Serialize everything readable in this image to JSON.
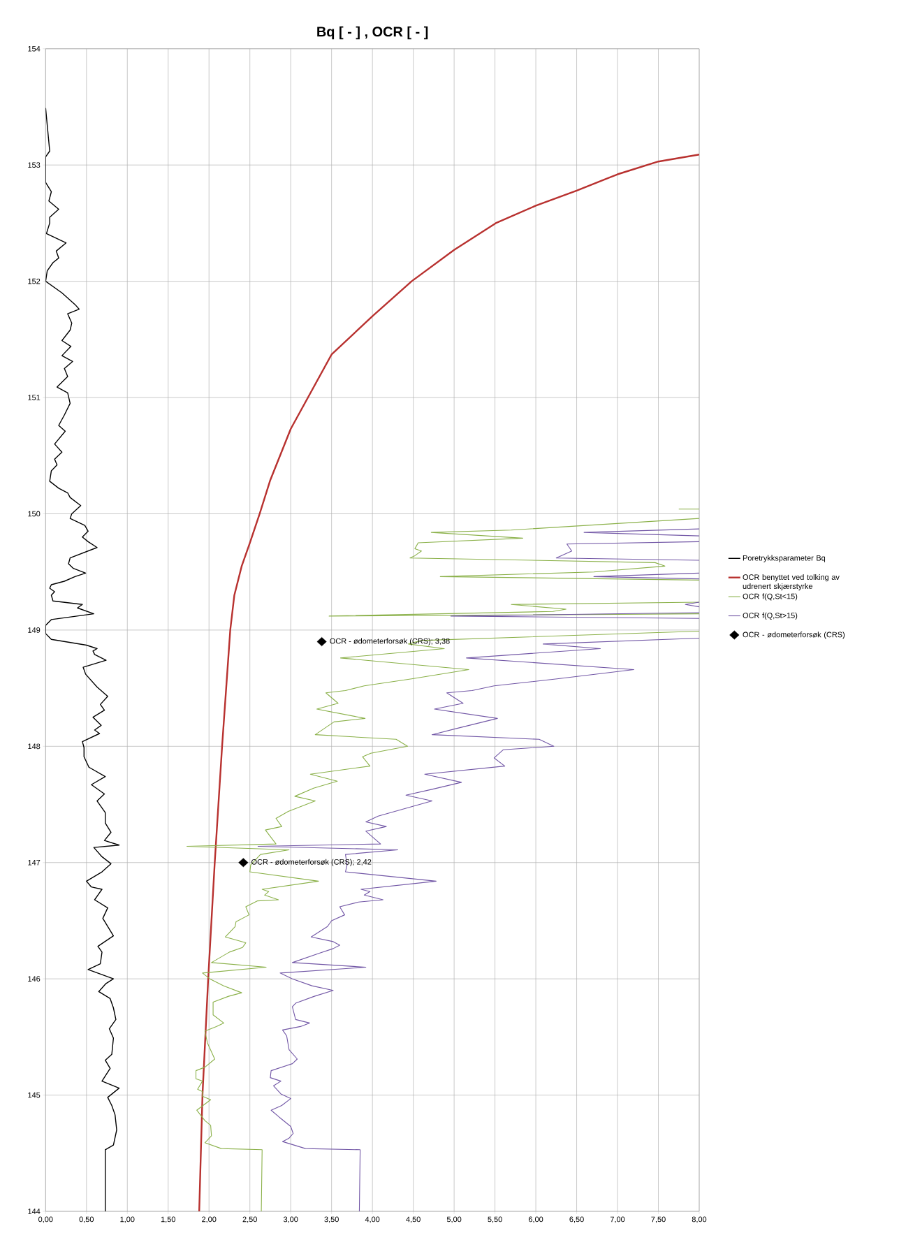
{
  "chart_data": {
    "type": "line",
    "title": "Bq [ - ] , OCR [ - ]",
    "xlim": [
      0,
      8
    ],
    "ylim": [
      144,
      154
    ],
    "xticks": [
      {
        "value": 0,
        "label": "0,00"
      },
      {
        "value": 0.5,
        "label": "0,50"
      },
      {
        "value": 1,
        "label": "1,00"
      },
      {
        "value": 1.5,
        "label": "1,50"
      },
      {
        "value": 2,
        "label": "2,00"
      },
      {
        "value": 2.5,
        "label": "2,50"
      },
      {
        "value": 3,
        "label": "3,00"
      },
      {
        "value": 3.5,
        "label": "3,50"
      },
      {
        "value": 4,
        "label": "4,00"
      },
      {
        "value": 4.5,
        "label": "4,50"
      },
      {
        "value": 5,
        "label": "5,00"
      },
      {
        "value": 5.5,
        "label": "5,50"
      },
      {
        "value": 6,
        "label": "6,00"
      },
      {
        "value": 6.5,
        "label": "6,50"
      },
      {
        "value": 7,
        "label": "7,00"
      },
      {
        "value": 7.5,
        "label": "7,50"
      },
      {
        "value": 8,
        "label": "8,00"
      }
    ],
    "yticks": [
      144,
      145,
      146,
      147,
      148,
      149,
      150,
      151,
      152,
      153,
      154
    ],
    "grid": true,
    "legend": "right",
    "series": [
      {
        "name": "Poretrykksparameter Bq",
        "color": "#000000",
        "x": [
          0,
          0.05,
          0,
          0,
          0.07,
          0.04,
          0.16,
          0.05,
          0.05,
          0.01,
          0.25,
          0.13,
          0.16,
          0.09,
          0.02,
          0,
          0.2,
          0.36,
          0.41,
          0.27,
          0.32,
          0.3,
          0.2,
          0.31,
          0.2,
          0.33,
          0.23,
          0.27,
          0.14,
          0.27,
          0.3,
          0.23,
          0.16,
          0.24,
          0.11,
          0.2,
          0.11,
          0.14,
          0.07,
          0.05,
          0.16,
          0.27,
          0.3,
          0.43,
          0.32,
          0.3,
          0.48,
          0.52,
          0.45,
          0.52,
          0.63,
          0.3,
          0.28,
          0.34,
          0.49,
          0.36,
          0.23,
          0.07,
          0.05,
          0.11,
          0.07,
          0.09,
          0.45,
          0.39,
          0.59,
          0.07,
          0,
          0,
          0.07,
          0.5,
          0.63,
          0.58,
          0.6,
          0.74,
          0.46,
          0.49,
          0.63,
          0.76,
          0.67,
          0.72,
          0.58,
          0.68,
          0.6,
          0.66,
          0.45,
          0.47,
          0.47,
          0.53,
          0.73,
          0.56,
          0.72,
          0.63,
          0.73,
          0.73,
          0.8,
          0.72,
          0.9,
          0.59,
          0.69,
          0.8,
          0.69,
          0.5,
          0.56,
          0.69,
          0.65,
          0.6,
          0.76,
          0.7,
          0.83,
          0.64,
          0.69,
          0.67,
          0.52,
          0.83,
          0.74,
          0.65,
          0.79,
          0.83,
          0.86,
          0.78,
          0.83,
          0.81,
          0.73,
          0.79,
          0.69,
          0.9,
          0.76,
          0.81,
          0.85,
          0.87,
          0.83,
          0.73,
          0.73
        ],
        "values": [
          153.49,
          153.12,
          153.07,
          152.85,
          152.77,
          152.69,
          152.62,
          152.55,
          152.5,
          152.41,
          152.33,
          152.26,
          152.2,
          152.16,
          152.09,
          152.0,
          151.9,
          151.8,
          151.76,
          151.72,
          151.64,
          151.58,
          151.49,
          151.44,
          151.36,
          151.31,
          151.25,
          151.18,
          151.09,
          151.04,
          150.95,
          150.85,
          150.76,
          150.71,
          150.6,
          150.53,
          150.47,
          150.42,
          150.37,
          150.28,
          150.22,
          150.18,
          150.14,
          150.07,
          150.0,
          149.96,
          149.9,
          149.85,
          149.8,
          149.76,
          149.71,
          149.62,
          149.57,
          149.53,
          149.49,
          149.46,
          149.42,
          149.39,
          149.36,
          149.33,
          149.3,
          149.25,
          149.22,
          149.19,
          149.14,
          149.09,
          149.04,
          148.97,
          148.92,
          148.87,
          148.84,
          148.82,
          148.79,
          148.74,
          148.68,
          148.62,
          148.51,
          148.43,
          148.36,
          148.31,
          148.25,
          148.18,
          148.14,
          148.11,
          148.04,
          147.99,
          147.91,
          147.82,
          147.74,
          147.67,
          147.59,
          147.53,
          147.43,
          147.34,
          147.26,
          147.19,
          147.15,
          147.13,
          147.05,
          146.99,
          146.92,
          146.84,
          146.79,
          146.77,
          146.73,
          146.68,
          146.61,
          146.52,
          146.37,
          146.28,
          146.23,
          146.13,
          146.08,
          146.0,
          145.96,
          145.89,
          145.83,
          145.75,
          145.65,
          145.57,
          145.49,
          145.35,
          145.3,
          145.23,
          145.12,
          145.06,
          144.98,
          144.91,
          144.83,
          144.7,
          144.57,
          144.53,
          144.0
        ]
      },
      {
        "name": "OCR benyttet ved tolking av udrenert skjærstyrke",
        "color": "#b8312f",
        "x": [
          1.88,
          1.92,
          1.99,
          2.07,
          2.16,
          2.26,
          2.31,
          2.4,
          2.5,
          2.62,
          2.75,
          3.0,
          3.5,
          4.0,
          4.48,
          5.0,
          5.51,
          6.0,
          6.5,
          7.0,
          7.5,
          8.0
        ],
        "values": [
          144.0,
          145.0,
          146.0,
          147.0,
          148.0,
          149.0,
          149.3,
          149.55,
          149.75,
          150.0,
          150.29,
          150.73,
          151.37,
          151.7,
          152.0,
          152.27,
          152.5,
          152.65,
          152.78,
          152.92,
          153.03,
          153.09
        ]
      },
      {
        "name": "OCR f(Q,St<15)",
        "color": "#8bb14a",
        "x": [
          7.75,
          8.0,
          null,
          8.0,
          5.7,
          4.72,
          5.84,
          4.56,
          4.52,
          4.6,
          4.52,
          4.46,
          7.46,
          7.58,
          6.71,
          4.83,
          8.0,
          null,
          8.0,
          5.7,
          6.37,
          6.21,
          3.47,
          8.0,
          null,
          8.0,
          4.6,
          4.44,
          4.88,
          3.61,
          5.18,
          4.48,
          3.9,
          3.67,
          3.43,
          3.58,
          3.32,
          3.91,
          3.53,
          3.3,
          4.29,
          4.43,
          3.98,
          3.88,
          3.97,
          3.24,
          3.57,
          3.28,
          3.05,
          3.3,
          2.97,
          2.82,
          2.89,
          2.69,
          2.82,
          1.73,
          2.98,
          2.63,
          2.51,
          2.5,
          3.34,
          2.65,
          2.73,
          2.68,
          2.85,
          2.59,
          2.45,
          2.49,
          2.33,
          2.32,
          2.2,
          2.45,
          2.41,
          2.25,
          2.03,
          2.7,
          1.92,
          2.01,
          2.18,
          2.4,
          2.24,
          2.05,
          2.05,
          2.18,
          2.09,
          1.95,
          1.98,
          2.07,
          1.95,
          1.84,
          1.84,
          1.92,
          1.86,
          1.92,
          1.92,
          2.02,
          1.85,
          1.95,
          2.02,
          2.03,
          1.95,
          2.15,
          2.65,
          2.64
        ],
        "values": [
          150.04,
          150.04,
          null,
          149.96,
          149.86,
          149.84,
          149.79,
          149.75,
          149.7,
          149.68,
          149.64,
          149.62,
          149.58,
          149.55,
          149.5,
          149.46,
          149.43,
          null,
          149.24,
          149.22,
          149.18,
          149.16,
          149.12,
          149.14,
          null,
          148.99,
          148.91,
          148.88,
          148.84,
          148.76,
          148.66,
          148.58,
          148.52,
          148.48,
          148.46,
          148.37,
          148.32,
          148.24,
          148.21,
          148.1,
          148.06,
          148.0,
          147.94,
          147.91,
          147.83,
          147.76,
          147.7,
          147.64,
          147.57,
          147.53,
          147.44,
          147.38,
          147.31,
          147.28,
          147.16,
          147.14,
          147.11,
          147.07,
          146.98,
          146.92,
          146.84,
          146.77,
          146.75,
          146.72,
          146.68,
          146.67,
          146.62,
          146.55,
          146.49,
          146.45,
          146.36,
          146.31,
          146.27,
          146.23,
          146.14,
          146.1,
          146.05,
          146.0,
          145.94,
          145.88,
          145.85,
          145.8,
          145.69,
          145.62,
          145.59,
          145.55,
          145.45,
          145.31,
          145.24,
          145.21,
          145.14,
          145.12,
          145.05,
          145.03,
          144.99,
          144.96,
          144.87,
          144.78,
          144.74,
          144.65,
          144.59,
          144.54,
          144.53,
          144.0
        ]
      },
      {
        "name": "OCR f(Q,St>15)",
        "color": "#7257a6",
        "x": [
          8.0,
          6.59,
          8.0,
          null,
          8.0,
          6.38,
          6.44,
          6.25,
          8.0,
          null,
          8.0,
          6.71,
          8.0,
          null,
          8.0,
          7.83,
          8.0,
          null,
          8.0,
          4.96,
          8.0,
          null,
          8.0,
          6.09,
          6.79,
          5.15,
          7.2,
          6.26,
          5.49,
          5.22,
          4.91,
          5.11,
          4.76,
          5.53,
          5.01,
          4.73,
          6.04,
          6.22,
          5.6,
          5.49,
          5.62,
          4.64,
          5.09,
          4.73,
          4.41,
          4.73,
          4.07,
          3.92,
          4.17,
          3.92,
          4.1,
          2.6,
          4.31,
          3.67,
          3.69,
          3.67,
          4.78,
          3.86,
          3.97,
          3.9,
          4.13,
          3.83,
          3.6,
          3.66,
          3.5,
          3.45,
          3.25,
          3.52,
          3.6,
          3.52,
          3.35,
          3.02,
          3.92,
          2.87,
          3.02,
          3.26,
          3.52,
          3.29,
          3.06,
          3.02,
          3.06,
          3.23,
          3.12,
          2.9,
          2.95,
          2.98,
          3.08,
          3.02,
          2.76,
          2.75,
          2.88,
          2.79,
          2.88,
          3.0,
          2.89,
          2.76,
          2.86,
          3.0,
          3.03,
          2.98,
          2.9,
          3.18,
          3.85,
          3.84
        ],
        "values": [
          149.87,
          149.84,
          149.81,
          null,
          149.76,
          149.74,
          149.68,
          149.62,
          149.6,
          null,
          149.49,
          149.46,
          149.44,
          null,
          149.24,
          149.22,
          149.2,
          null,
          149.15,
          149.12,
          149.1,
          null,
          148.93,
          148.88,
          148.84,
          148.76,
          148.66,
          148.58,
          148.52,
          148.48,
          148.46,
          148.37,
          148.32,
          148.24,
          148.15,
          148.1,
          148.06,
          148.0,
          147.97,
          147.9,
          147.83,
          147.76,
          147.69,
          147.63,
          147.58,
          147.53,
          147.4,
          147.35,
          147.31,
          147.27,
          147.16,
          147.14,
          147.11,
          147.07,
          146.98,
          146.92,
          146.84,
          146.77,
          146.75,
          146.72,
          146.68,
          146.66,
          146.62,
          146.55,
          146.5,
          146.45,
          146.36,
          146.32,
          146.29,
          146.26,
          146.22,
          146.14,
          146.1,
          146.05,
          146.0,
          145.94,
          145.9,
          145.85,
          145.79,
          145.76,
          145.65,
          145.62,
          145.59,
          145.56,
          145.51,
          145.39,
          145.31,
          145.27,
          145.21,
          145.15,
          145.12,
          145.08,
          145.01,
          144.97,
          144.91,
          144.87,
          144.81,
          144.73,
          144.67,
          144.63,
          144.6,
          144.54,
          144.53,
          144.0
        ]
      },
      {
        "name": "OCR - ødometerforsøk (CRS)",
        "type": "scatter",
        "marker": "diamond",
        "color": "#000000",
        "x": [
          3.38,
          2.42
        ],
        "values": [
          148.9,
          147.0
        ]
      }
    ],
    "annotations": [
      {
        "text": "OCR - ødometerforsøk (CRS); 3,38",
        "x": 3.38,
        "y": 148.9
      },
      {
        "text": "OCR - ødometerforsøk (CRS); 2,42",
        "x": 2.42,
        "y": 147.0
      }
    ]
  }
}
